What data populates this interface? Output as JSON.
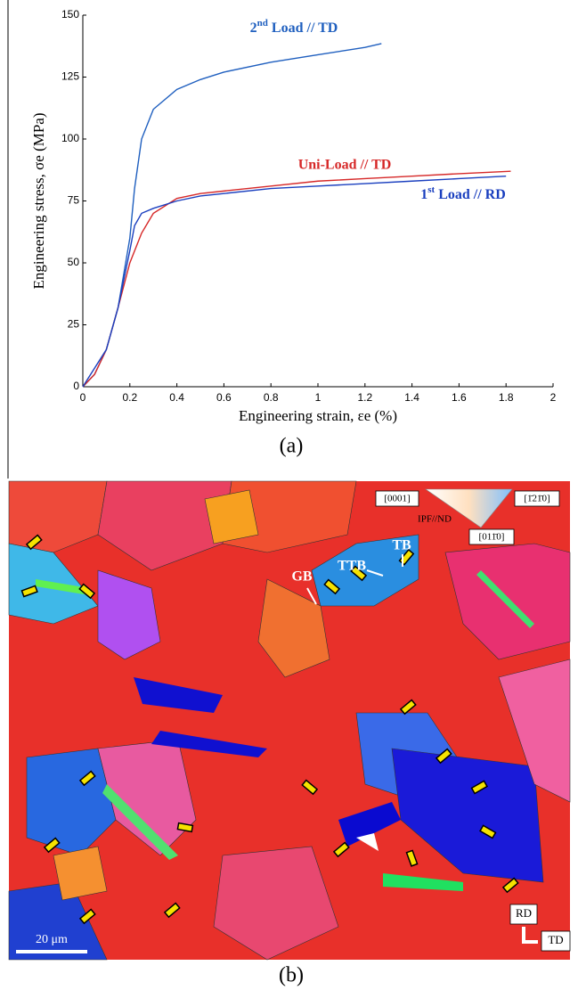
{
  "chart_data": {
    "type": "line",
    "xlabel": "Engineering strain, εe (%)",
    "ylabel": "Engineering stress, σe (MPa)",
    "caption": "(a)",
    "xlim": [
      0,
      2
    ],
    "xticks": [
      0,
      0.2,
      0.4,
      0.6,
      0.8,
      1,
      1.2,
      1.4,
      1.6,
      1.8,
      2
    ],
    "ylim": [
      0,
      150
    ],
    "yticks": [
      0,
      25,
      50,
      75,
      100,
      125,
      150
    ],
    "series": [
      {
        "name": "2nd Load // TD",
        "color": "#1f5fbf",
        "x": [
          0,
          0.05,
          0.1,
          0.15,
          0.2,
          0.22,
          0.25,
          0.3,
          0.4,
          0.5,
          0.6,
          0.8,
          1.0,
          1.2,
          1.27
        ],
        "values": [
          0,
          5,
          15,
          32,
          60,
          80,
          100,
          112,
          120,
          124,
          127,
          131,
          134,
          137,
          138.5
        ]
      },
      {
        "name": "Uni-Load // TD",
        "color": "#d62828",
        "x": [
          0,
          0.05,
          0.1,
          0.15,
          0.2,
          0.25,
          0.3,
          0.4,
          0.5,
          0.6,
          0.8,
          1.0,
          1.2,
          1.4,
          1.6,
          1.82
        ],
        "values": [
          0,
          5,
          15,
          32,
          50,
          62,
          70,
          76,
          78,
          79,
          81,
          83,
          84,
          85,
          86,
          87
        ]
      },
      {
        "name": "1st Load // RD",
        "color": "#1a3fbf",
        "x": [
          0,
          0.1,
          0.15,
          0.2,
          0.22,
          0.25,
          0.3,
          0.4,
          0.5,
          0.6,
          0.8,
          1.0,
          1.2,
          1.4,
          1.6,
          1.8
        ],
        "values": [
          0,
          15,
          32,
          55,
          65,
          70,
          72,
          75,
          77,
          78,
          80,
          81,
          82,
          83,
          84,
          85
        ]
      }
    ]
  },
  "map": {
    "key_0001": "[0001]",
    "key_1210": "[1̄21̄0]",
    "key_0110": "[011̄0]",
    "key_title": "IPF//ND",
    "gb": "GB",
    "ttb": "TTB",
    "tb": "TB",
    "rd": "RD",
    "td": "TD",
    "scale": "20 μm",
    "caption": "(b)"
  }
}
